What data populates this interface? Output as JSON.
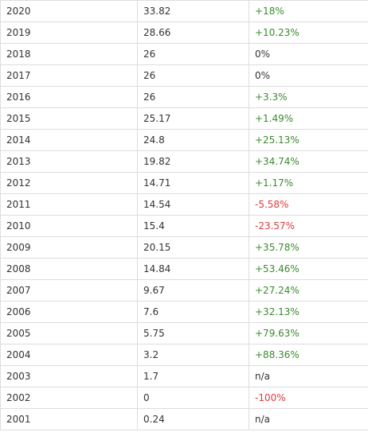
{
  "colors": {
    "positive": "#3a8a2e",
    "negative": "#e03a3a",
    "neutral": "#333333",
    "border": "#dddddd"
  },
  "rows": [
    {
      "year": "2020",
      "value": "33.82",
      "change": "+18%",
      "trend": "positive"
    },
    {
      "year": "2019",
      "value": "28.66",
      "change": "+10.23%",
      "trend": "positive"
    },
    {
      "year": "2018",
      "value": "26",
      "change": "0%",
      "trend": "neutral"
    },
    {
      "year": "2017",
      "value": "26",
      "change": "0%",
      "trend": "neutral"
    },
    {
      "year": "2016",
      "value": "26",
      "change": "+3.3%",
      "trend": "positive"
    },
    {
      "year": "2015",
      "value": "25.17",
      "change": "+1.49%",
      "trend": "positive"
    },
    {
      "year": "2014",
      "value": "24.8",
      "change": "+25.13%",
      "trend": "positive"
    },
    {
      "year": "2013",
      "value": "19.82",
      "change": "+34.74%",
      "trend": "positive"
    },
    {
      "year": "2012",
      "value": "14.71",
      "change": "+1.17%",
      "trend": "positive"
    },
    {
      "year": "2011",
      "value": "14.54",
      "change": "-5.58%",
      "trend": "negative"
    },
    {
      "year": "2010",
      "value": "15.4",
      "change": "-23.57%",
      "trend": "negative"
    },
    {
      "year": "2009",
      "value": "20.15",
      "change": "+35.78%",
      "trend": "positive"
    },
    {
      "year": "2008",
      "value": "14.84",
      "change": "+53.46%",
      "trend": "positive"
    },
    {
      "year": "2007",
      "value": "9.67",
      "change": "+27.24%",
      "trend": "positive"
    },
    {
      "year": "2006",
      "value": "7.6",
      "change": "+32.13%",
      "trend": "positive"
    },
    {
      "year": "2005",
      "value": "5.75",
      "change": "+79.63%",
      "trend": "positive"
    },
    {
      "year": "2004",
      "value": "3.2",
      "change": "+88.36%",
      "trend": "positive"
    },
    {
      "year": "2003",
      "value": "1.7",
      "change": "n/a",
      "trend": "neutral"
    },
    {
      "year": "2002",
      "value": "0",
      "change": "-100%",
      "trend": "negative"
    },
    {
      "year": "2001",
      "value": "0.24",
      "change": "n/a",
      "trend": "neutral"
    }
  ]
}
